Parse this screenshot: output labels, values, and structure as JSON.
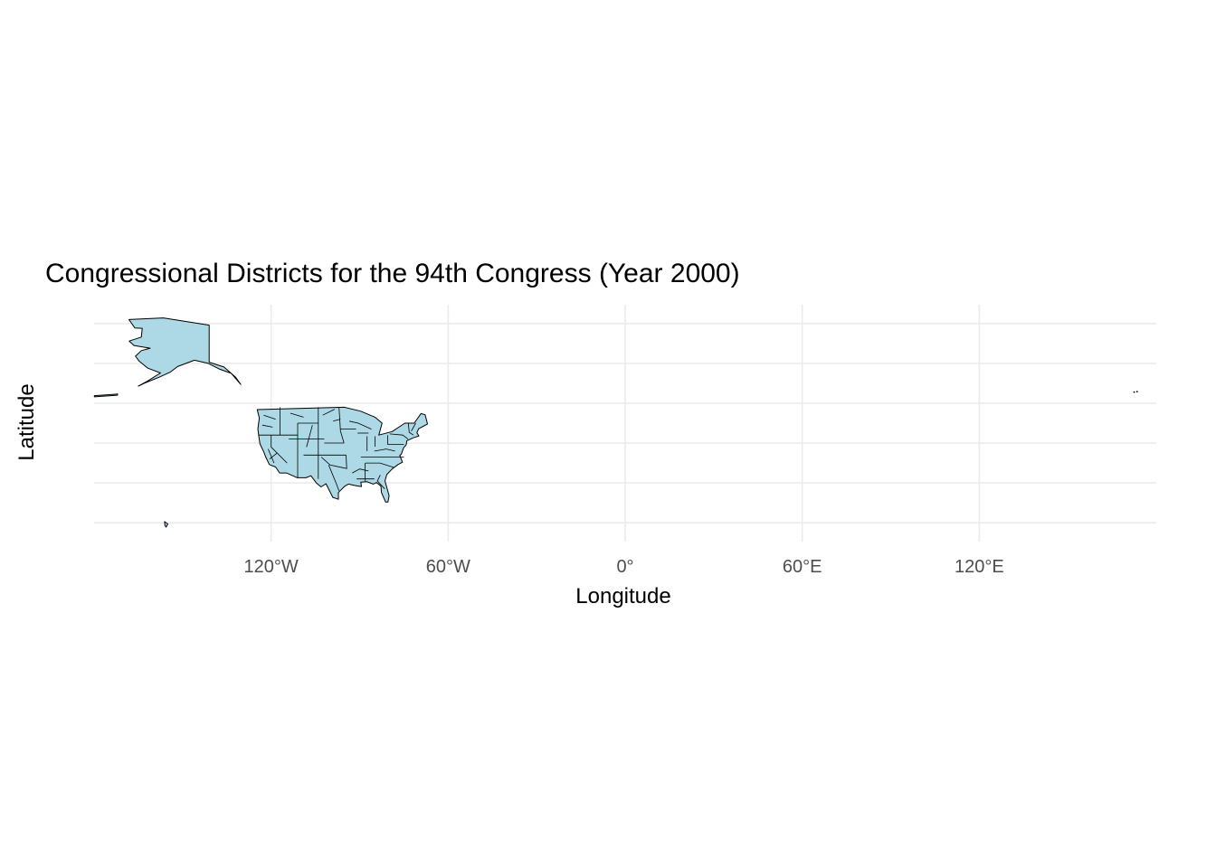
{
  "chart_data": {
    "type": "map",
    "title": "Congressional Districts for the 94th Congress (Year 2000)",
    "xlabel": "Longitude",
    "ylabel": "Latitude",
    "x_ticks": [
      {
        "value": -120,
        "label": "120°W"
      },
      {
        "value": -60,
        "label": "60°W"
      },
      {
        "value": 0,
        "label": "0°"
      },
      {
        "value": 60,
        "label": "60°E"
      },
      {
        "value": 120,
        "label": "120°E"
      }
    ],
    "y_gridlines": [
      20,
      30,
      40,
      50,
      60,
      70
    ],
    "xlim": [
      -180,
      180
    ],
    "ylim": [
      18,
      72
    ],
    "fill_color": "#add8e6",
    "border_color": "#000000",
    "grid_color": "#ebebeb",
    "regions": [
      {
        "name": "Alaska",
        "polygon": [
          [
            -168.2,
            71.0
          ],
          [
            -156.5,
            71.4
          ],
          [
            -141.0,
            69.6
          ],
          [
            -141.0,
            60.3
          ],
          [
            -136.0,
            59.1
          ],
          [
            -132.0,
            56.5
          ],
          [
            -130.3,
            54.7
          ],
          [
            -133.5,
            57.5
          ],
          [
            -137.6,
            58.6
          ],
          [
            -141.3,
            60.0
          ],
          [
            -146.0,
            60.8
          ],
          [
            -151.7,
            59.2
          ],
          [
            -154.2,
            57.8
          ],
          [
            -158.0,
            56.5
          ],
          [
            -163.0,
            55.0
          ],
          [
            -165.0,
            54.3
          ],
          [
            -162.0,
            55.5
          ],
          [
            -157.5,
            57.6
          ],
          [
            -161.8,
            58.8
          ],
          [
            -164.8,
            60.6
          ],
          [
            -166.0,
            61.8
          ],
          [
            -164.0,
            63.2
          ],
          [
            -161.0,
            63.8
          ],
          [
            -166.5,
            64.5
          ],
          [
            -168.1,
            65.6
          ],
          [
            -164.0,
            66.6
          ],
          [
            -163.7,
            68.8
          ],
          [
            -166.2,
            68.9
          ]
        ]
      },
      {
        "name": "Contiguous US",
        "polygon": [
          [
            -124.7,
            48.4
          ],
          [
            -95.2,
            49.0
          ],
          [
            -89.6,
            48.0
          ],
          [
            -84.8,
            46.5
          ],
          [
            -82.4,
            45.0
          ],
          [
            -83.5,
            42.0
          ],
          [
            -79.0,
            42.9
          ],
          [
            -76.3,
            44.2
          ],
          [
            -74.7,
            45.0
          ],
          [
            -71.5,
            45.0
          ],
          [
            -69.2,
            47.4
          ],
          [
            -67.8,
            47.1
          ],
          [
            -67.0,
            44.8
          ],
          [
            -70.0,
            43.6
          ],
          [
            -70.6,
            42.6
          ],
          [
            -69.9,
            41.8
          ],
          [
            -71.9,
            41.3
          ],
          [
            -74.0,
            40.6
          ],
          [
            -74.2,
            39.6
          ],
          [
            -75.1,
            38.8
          ],
          [
            -75.9,
            37.2
          ],
          [
            -76.4,
            36.9
          ],
          [
            -75.5,
            35.2
          ],
          [
            -77.0,
            34.6
          ],
          [
            -79.0,
            33.5
          ],
          [
            -80.8,
            32.1
          ],
          [
            -81.4,
            30.5
          ],
          [
            -80.0,
            26.8
          ],
          [
            -80.4,
            25.2
          ],
          [
            -81.2,
            25.2
          ],
          [
            -82.6,
            27.6
          ],
          [
            -82.8,
            29.2
          ],
          [
            -84.3,
            30.1
          ],
          [
            -85.4,
            29.7
          ],
          [
            -87.5,
            30.3
          ],
          [
            -89.6,
            30.2
          ],
          [
            -89.4,
            29.1
          ],
          [
            -91.2,
            29.3
          ],
          [
            -93.8,
            29.7
          ],
          [
            -95.0,
            29.2
          ],
          [
            -97.2,
            27.6
          ],
          [
            -97.2,
            25.9
          ],
          [
            -99.1,
            26.4
          ],
          [
            -101.4,
            29.8
          ],
          [
            -103.1,
            29.0
          ],
          [
            -104.7,
            30.0
          ],
          [
            -106.5,
            31.8
          ],
          [
            -108.2,
            31.3
          ],
          [
            -111.1,
            31.3
          ],
          [
            -114.8,
            32.5
          ],
          [
            -117.1,
            32.5
          ],
          [
            -118.5,
            34.0
          ],
          [
            -120.6,
            34.6
          ],
          [
            -121.9,
            36.6
          ],
          [
            -122.5,
            37.8
          ],
          [
            -123.8,
            39.8
          ],
          [
            -124.2,
            41.8
          ],
          [
            -124.5,
            43.5
          ],
          [
            -124.0,
            46.3
          ]
        ]
      },
      {
        "name": "Hawaii",
        "polygon": [
          [
            -156.1,
            20.3
          ],
          [
            -155.0,
            19.7
          ],
          [
            -155.6,
            18.9
          ],
          [
            -156.0,
            19.3
          ]
        ]
      },
      {
        "name": "Aleutians",
        "polygon": [
          [
            -179.9,
            51.9
          ],
          [
            -172.0,
            52.3
          ],
          [
            -172.1,
            52.0
          ],
          [
            -179.9,
            51.6
          ]
        ]
      }
    ],
    "district_lines": [
      [
        [
          -117.0,
          49.0
        ],
        [
          -117.0,
          42.0
        ]
      ],
      [
        [
          -111.0,
          45.0
        ],
        [
          -111.0,
          31.3
        ]
      ],
      [
        [
          -104.0,
          49.0
        ],
        [
          -104.0,
          31.0
        ]
      ],
      [
        [
          -124.2,
          42.0
        ],
        [
          -111.0,
          42.0
        ]
      ],
      [
        [
          -111.0,
          45.0
        ],
        [
          -104.0,
          45.0
        ]
      ],
      [
        [
          -114.0,
          41.0
        ],
        [
          -102.0,
          41.0
        ]
      ],
      [
        [
          -109.0,
          37.0
        ],
        [
          -94.6,
          37.0
        ]
      ],
      [
        [
          -120.0,
          42.0
        ],
        [
          -120.0,
          39.0
        ],
        [
          -114.6,
          35.0
        ]
      ],
      [
        [
          -102.0,
          40.0
        ],
        [
          -95.3,
          40.0
        ]
      ],
      [
        [
          -97.0,
          49.0
        ],
        [
          -96.5,
          43.0
        ],
        [
          -95.3,
          40.0
        ]
      ],
      [
        [
          -91.2,
          43.5
        ],
        [
          -96.5,
          43.5
        ]
      ],
      [
        [
          -94.6,
          37.0
        ],
        [
          -94.4,
          33.6
        ],
        [
          -100.0,
          34.5
        ],
        [
          -103.0,
          36.5
        ]
      ],
      [
        [
          -89.6,
          36.5
        ],
        [
          -75.0,
          36.5
        ]
      ],
      [
        [
          -88.0,
          35.0
        ],
        [
          -85.6,
          35.0
        ],
        [
          -83.1,
          35.0
        ],
        [
          -78.5,
          33.9
        ]
      ],
      [
        [
          -88.1,
          30.4
        ],
        [
          -88.2,
          35.0
        ]
      ],
      [
        [
          -91.0,
          31.0
        ],
        [
          -85.0,
          31.0
        ]
      ],
      [
        [
          -87.5,
          41.7
        ],
        [
          -87.5,
          38.0
        ]
      ],
      [
        [
          -84.8,
          41.7
        ],
        [
          -84.8,
          39.1
        ]
      ],
      [
        [
          -80.5,
          42.0
        ],
        [
          -80.5,
          39.7
        ],
        [
          -75.0,
          39.7
        ]
      ],
      [
        [
          -79.8,
          42.3
        ],
        [
          -75.4,
          42.0
        ],
        [
          -73.6,
          41.0
        ]
      ],
      [
        [
          -73.5,
          45.0
        ],
        [
          -73.2,
          42.7
        ],
        [
          -71.8,
          42.0
        ]
      ],
      [
        [
          -72.5,
          43.0
        ],
        [
          -71.0,
          45.0
        ]
      ],
      [
        [
          -90.7,
          42.5
        ],
        [
          -87.0,
          42.5
        ]
      ],
      [
        [
          -100.5,
          34.5
        ],
        [
          -98.0,
          30.0
        ],
        [
          -97.0,
          28.0
        ]
      ],
      [
        [
          -118.0,
          37.5
        ],
        [
          -120.5,
          36.0
        ]
      ],
      [
        [
          -121.0,
          38.5
        ],
        [
          -119.0,
          35.0
        ]
      ],
      [
        [
          -106.0,
          44.5
        ],
        [
          -108.0,
          39.0
        ]
      ],
      [
        [
          -93.5,
          45.5
        ],
        [
          -90.5,
          45.0
        ],
        [
          -86.0,
          43.5
        ]
      ],
      [
        [
          -85.0,
          38.0
        ],
        [
          -81.0,
          38.5
        ],
        [
          -78.0,
          38.0
        ]
      ],
      [
        [
          -92.5,
          32.5
        ],
        [
          -90.0,
          33.5
        ],
        [
          -87.0,
          33.0
        ]
      ],
      [
        [
          -83.0,
          32.0
        ],
        [
          -84.0,
          30.5
        ],
        [
          -81.5,
          28.5
        ]
      ],
      [
        [
          -99.0,
          45.5
        ],
        [
          -96.5,
          46.0
        ]
      ],
      [
        [
          -102.5,
          47.0
        ],
        [
          -98.5,
          48.5
        ]
      ],
      [
        [
          -113.5,
          47.5
        ],
        [
          -109.0,
          46.5
        ]
      ],
      [
        [
          -122.5,
          47.0
        ],
        [
          -118.5,
          46.0
        ]
      ],
      [
        [
          -123.0,
          44.5
        ],
        [
          -119.5,
          44.0
        ]
      ]
    ],
    "far_east_points": [
      [
        172.5,
        52.8
      ],
      [
        173.5,
        52.9
      ]
    ]
  }
}
